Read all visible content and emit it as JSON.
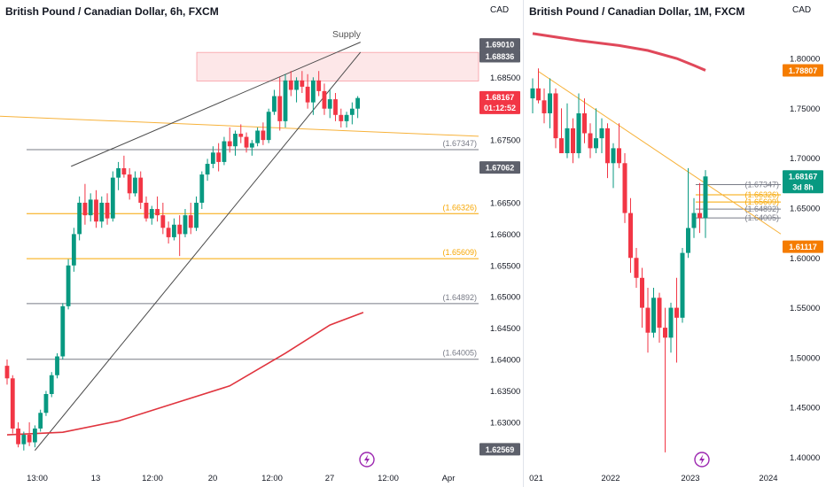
{
  "chart_data": [
    {
      "type": "candlestick",
      "title": "British Pound / Canadian Dollar, 6h, FXCM",
      "currency": "CAD",
      "y_ticks": [
        "1.68500",
        "1.67500",
        "1.66500",
        "1.66000",
        "1.65500",
        "1.65000",
        "1.64500",
        "1.64000",
        "1.63500",
        "1.63000"
      ],
      "x_ticks": [
        "13:00",
        "13",
        "12:00",
        "20",
        "12:00",
        "27",
        "12:00",
        "Apr"
      ],
      "ylim": [
        1.6225,
        1.6945
      ],
      "price_tags": [
        {
          "label": "1.69010",
          "role": "supply-top"
        },
        {
          "label": "1.68836",
          "role": "supply-bottom"
        },
        {
          "label": "1.68167",
          "countdown": "01:12:52",
          "role": "last-price"
        },
        {
          "label": "1.67062",
          "role": "marker"
        },
        {
          "label": "1.62569",
          "role": "low"
        }
      ],
      "levels": [
        {
          "label": "(1.67347)",
          "value": 1.67347,
          "color": "#787b86"
        },
        {
          "label": "(1.66326)",
          "value": 1.66326,
          "color": "#f7a600"
        },
        {
          "label": "(1.65609)",
          "value": 1.65609,
          "color": "#f7a600"
        },
        {
          "label": "(1.64892)",
          "value": 1.64892,
          "color": "#787b86"
        },
        {
          "label": "(1.64005)",
          "value": 1.64005,
          "color": "#787b86"
        }
      ],
      "supply_zone": {
        "label": "Supply",
        "top": 1.6901,
        "bottom": 1.68836
      },
      "candles": [
        [
          1.639,
          1.64,
          1.636,
          1.637
        ],
        [
          1.637,
          1.6375,
          1.6282,
          1.629
        ],
        [
          1.629,
          1.63,
          1.626,
          1.6265
        ],
        [
          1.6265,
          1.6285,
          1.6255,
          1.628
        ],
        [
          1.628,
          1.63,
          1.6262,
          1.6268
        ],
        [
          1.6268,
          1.6295,
          1.626,
          1.629
        ],
        [
          1.629,
          1.632,
          1.6285,
          1.6315
        ],
        [
          1.6315,
          1.635,
          1.631,
          1.6345
        ],
        [
          1.6345,
          1.638,
          1.634,
          1.6375
        ],
        [
          1.6375,
          1.641,
          1.637,
          1.6405
        ],
        [
          1.6405,
          1.649,
          1.64,
          1.6485
        ],
        [
          1.6485,
          1.656,
          1.648,
          1.655
        ],
        [
          1.655,
          1.661,
          1.654,
          1.66
        ],
        [
          1.66,
          1.666,
          1.659,
          1.665
        ],
        [
          1.665,
          1.668,
          1.6615,
          1.663
        ],
        [
          1.663,
          1.6665,
          1.662,
          1.6655
        ],
        [
          1.6655,
          1.667,
          1.661,
          1.662
        ],
        [
          1.662,
          1.666,
          1.661,
          1.665
        ],
        [
          1.665,
          1.6665,
          1.6615,
          1.6625
        ],
        [
          1.6625,
          1.67,
          1.662,
          1.669
        ],
        [
          1.669,
          1.6715,
          1.667,
          1.6705
        ],
        [
          1.6705,
          1.6725,
          1.669,
          1.6695
        ],
        [
          1.6695,
          1.6705,
          1.6655,
          1.6665
        ],
        [
          1.6665,
          1.67,
          1.666,
          1.669
        ],
        [
          1.669,
          1.67,
          1.664,
          1.665
        ],
        [
          1.665,
          1.666,
          1.662,
          1.6625
        ],
        [
          1.6625,
          1.6645,
          1.6615,
          1.664
        ],
        [
          1.664,
          1.666,
          1.662,
          1.663
        ],
        [
          1.663,
          1.665,
          1.66,
          1.661
        ],
        [
          1.661,
          1.662,
          1.6585,
          1.6595
        ],
        [
          1.6595,
          1.6625,
          1.659,
          1.6615
        ],
        [
          1.6615,
          1.663,
          1.6565,
          1.66
        ],
        [
          1.66,
          1.664,
          1.6595,
          1.663
        ],
        [
          1.663,
          1.665,
          1.66,
          1.661
        ],
        [
          1.661,
          1.666,
          1.6605,
          1.665
        ],
        [
          1.665,
          1.67,
          1.664,
          1.6695
        ],
        [
          1.6695,
          1.672,
          1.6685,
          1.6712
        ],
        [
          1.6712,
          1.674,
          1.6705,
          1.673
        ],
        [
          1.673,
          1.6745,
          1.67,
          1.6715
        ],
        [
          1.6715,
          1.6755,
          1.671,
          1.6748
        ],
        [
          1.6748,
          1.677,
          1.673,
          1.674
        ],
        [
          1.674,
          1.6765,
          1.6725,
          1.676
        ],
        [
          1.676,
          1.6775,
          1.6745,
          1.6755
        ],
        [
          1.6755,
          1.6762,
          1.673,
          1.6738
        ],
        [
          1.6738,
          1.675,
          1.6725,
          1.6745
        ],
        [
          1.6745,
          1.677,
          1.674,
          1.6765
        ],
        [
          1.6765,
          1.6778,
          1.6742,
          1.675
        ],
        [
          1.675,
          1.68,
          1.6745,
          1.6795
        ],
        [
          1.6795,
          1.683,
          1.679,
          1.682
        ],
        [
          1.682,
          1.685,
          1.6765,
          1.678
        ],
        [
          1.678,
          1.6855,
          1.677,
          1.6845
        ],
        [
          1.6845,
          1.686,
          1.682,
          1.683
        ],
        [
          1.683,
          1.685,
          1.681,
          1.6845
        ],
        [
          1.6845,
          1.686,
          1.6825,
          1.6835
        ],
        [
          1.6835,
          1.6855,
          1.68,
          1.681
        ],
        [
          1.681,
          1.685,
          1.679,
          1.6845
        ],
        [
          1.6845,
          1.686,
          1.682,
          1.6828
        ],
        [
          1.6828,
          1.684,
          1.679,
          1.68
        ],
        [
          1.68,
          1.683,
          1.6785,
          1.6815
        ],
        [
          1.6815,
          1.6825,
          1.678,
          1.679
        ],
        [
          1.679,
          1.68,
          1.677,
          1.678
        ],
        [
          1.678,
          1.6795,
          1.677,
          1.679
        ],
        [
          1.679,
          1.681,
          1.6775,
          1.68
        ],
        [
          1.68,
          1.682,
          1.6785,
          1.6817
        ]
      ],
      "ma": [
        [
          0,
          1.628
        ],
        [
          10,
          1.6284
        ],
        [
          20,
          1.6302
        ],
        [
          30,
          1.633
        ],
        [
          40,
          1.6358
        ],
        [
          50,
          1.641
        ],
        [
          58,
          1.6455
        ],
        [
          64,
          1.6475
        ]
      ]
    },
    {
      "type": "candlestick",
      "title": "British Pound / Canadian Dollar, 1M, FXCM",
      "currency": "CAD",
      "y_ticks": [
        "1.80000",
        "1.75000",
        "1.70000",
        "1.65000",
        "1.60000",
        "1.55000",
        "1.50000",
        "1.45000",
        "1.40000"
      ],
      "x_ticks": [
        "021",
        "2022",
        "2023",
        "2024"
      ],
      "ylim": [
        1.388,
        1.832
      ],
      "price_tags": [
        {
          "label": "1.78807",
          "role": "ma-value"
        },
        {
          "label": "1.68167",
          "countdown": "3d 8h",
          "role": "last-price"
        },
        {
          "label": "1.61117",
          "role": "marker"
        }
      ],
      "levels": [
        {
          "label": "(1.67347)",
          "value": 1.67347,
          "color": "#787b86"
        },
        {
          "label": "(1.66326)",
          "value": 1.66326,
          "color": "#f7a600"
        },
        {
          "label": "(1.65609)",
          "value": 1.65609,
          "color": "#f7a600"
        },
        {
          "label": "(1.64892)",
          "value": 1.64892,
          "color": "#787b86"
        },
        {
          "label": "(1.64005)",
          "value": 1.64005,
          "color": "#787b86"
        }
      ],
      "candles": [
        [
          1.76,
          1.78,
          1.745,
          1.77
        ],
        [
          1.77,
          1.79,
          1.755,
          1.758
        ],
        [
          1.758,
          1.77,
          1.735,
          1.745
        ],
        [
          1.745,
          1.78,
          1.73,
          1.765
        ],
        [
          1.765,
          1.77,
          1.71,
          1.72
        ],
        [
          1.72,
          1.75,
          1.705,
          1.705
        ],
        [
          1.705,
          1.755,
          1.7,
          1.73
        ],
        [
          1.73,
          1.74,
          1.695,
          1.705
        ],
        [
          1.705,
          1.765,
          1.7,
          1.745
        ],
        [
          1.745,
          1.76,
          1.715,
          1.725
        ],
        [
          1.725,
          1.735,
          1.7,
          1.71
        ],
        [
          1.71,
          1.75,
          1.705,
          1.72
        ],
        [
          1.72,
          1.74,
          1.705,
          1.73
        ],
        [
          1.73,
          1.735,
          1.68,
          1.695
        ],
        [
          1.695,
          1.715,
          1.67,
          1.71
        ],
        [
          1.71,
          1.735,
          1.69,
          1.695
        ],
        [
          1.695,
          1.705,
          1.635,
          1.645
        ],
        [
          1.645,
          1.66,
          1.585,
          1.6
        ],
        [
          1.6,
          1.61,
          1.57,
          1.58
        ],
        [
          1.58,
          1.59,
          1.53,
          1.55
        ],
        [
          1.55,
          1.57,
          1.505,
          1.525
        ],
        [
          1.525,
          1.57,
          1.52,
          1.56
        ],
        [
          1.56,
          1.565,
          1.515,
          1.53
        ],
        [
          1.53,
          1.55,
          1.405,
          1.52
        ],
        [
          1.52,
          1.555,
          1.505,
          1.55
        ],
        [
          1.55,
          1.58,
          1.495,
          1.54
        ],
        [
          1.54,
          1.61,
          1.535,
          1.605
        ],
        [
          1.605,
          1.69,
          1.6,
          1.63
        ],
        [
          1.63,
          1.66,
          1.62,
          1.645
        ],
        [
          1.645,
          1.675,
          1.625,
          1.64
        ],
        [
          1.64,
          1.688,
          1.62,
          1.6817
        ]
      ],
      "ma": [
        [
          0,
          1.825
        ],
        [
          8,
          1.818
        ],
        [
          15,
          1.813
        ],
        [
          20,
          1.808
        ],
        [
          25,
          1.8
        ],
        [
          28,
          1.793
        ],
        [
          30,
          1.7881
        ]
      ]
    }
  ],
  "bottom_icon": "lightning-icon"
}
